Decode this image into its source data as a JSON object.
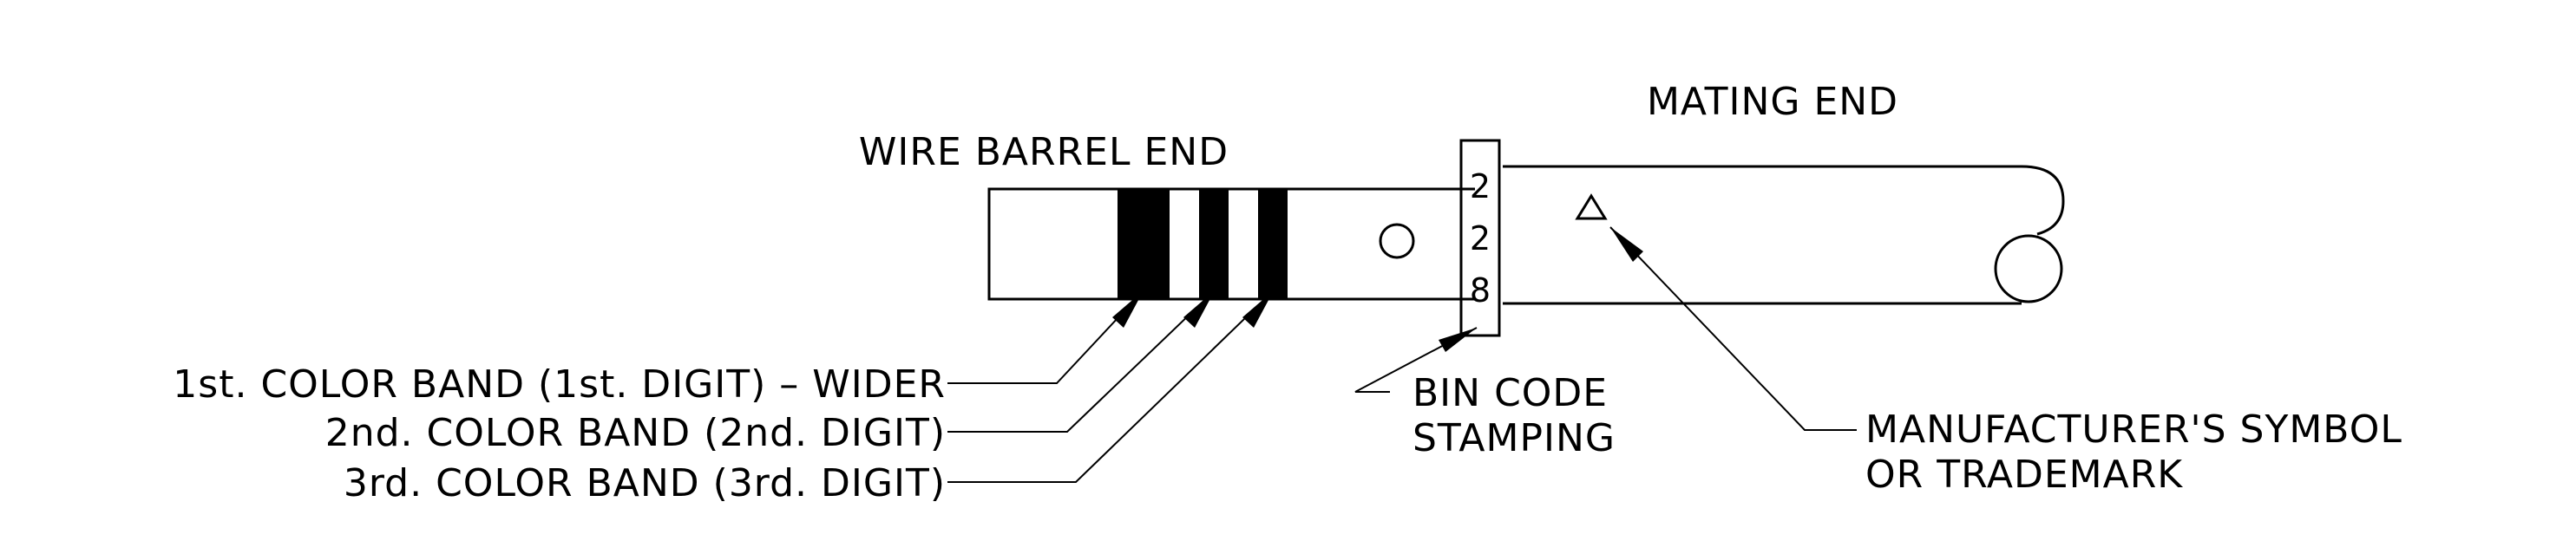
{
  "labels": {
    "wire_barrel_end": "WIRE BARREL END",
    "mating_end": "MATING END",
    "band1": "1st. COLOR BAND (1st. DIGIT) – WIDER",
    "band2": "2nd. COLOR BAND (2nd. DIGIT)",
    "band3": "3rd. COLOR BAND (3rd. DIGIT)",
    "bin_code_line1": "BIN CODE",
    "bin_code_line2": "STAMPING",
    "manufacturer_line1": "MANUFACTURER'S SYMBOL",
    "manufacturer_line2": "OR TRADEMARK"
  },
  "stamp_digits": [
    "2",
    "2",
    "8"
  ],
  "colors": {
    "ink": "#000000",
    "background": "#ffffff"
  }
}
